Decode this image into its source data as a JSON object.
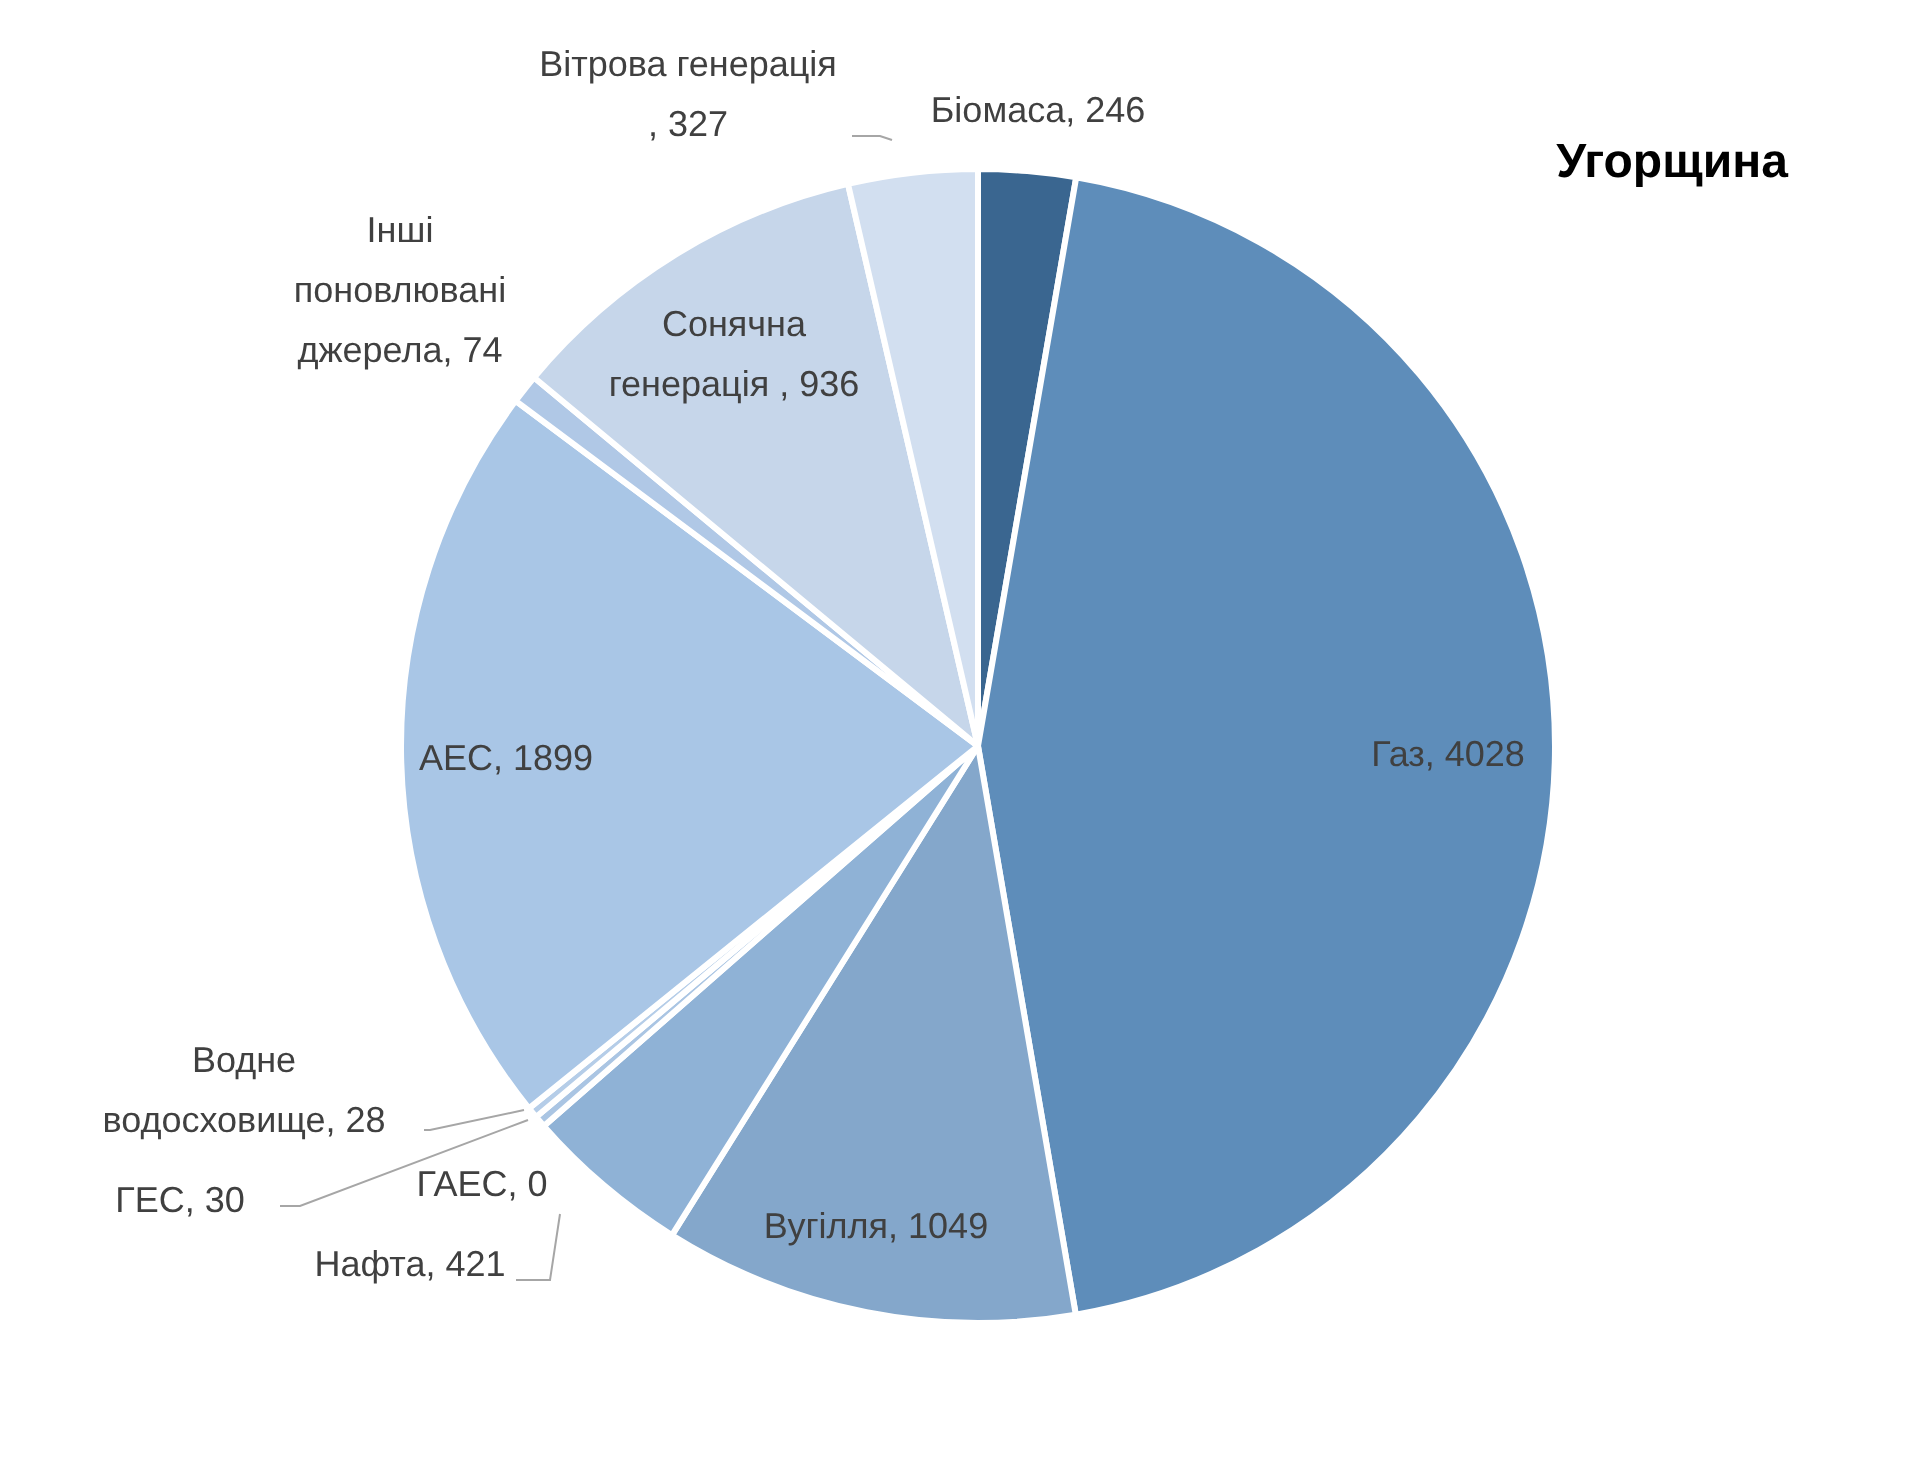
{
  "chart_data": {
    "type": "pie",
    "title": "Угорщина",
    "categories": [
      "Біомаса",
      "Газ",
      "Вугілля",
      "Нафта",
      "ГАЕС",
      "ГЕС",
      "Водне водосховище",
      "АЕС",
      "Інші поновлювані джерела",
      "Сонячна генерація ",
      "Вітрова генерація"
    ],
    "values": [
      246,
      4028,
      1049,
      421,
      0,
      30,
      28,
      1899,
      74,
      936,
      327
    ],
    "colors": [
      "#3a6690",
      "#5e8dba",
      "#84a7cb",
      "#8fb2d6",
      "#6b98c8",
      "#aac5e3",
      "#b5cde8",
      "#a9c6e6",
      "#b0c8e6",
      "#c6d6ea",
      "#d2dff0"
    ],
    "value_labels": [
      ", 246",
      ", 4028",
      ", 1049",
      ", 421",
      ", 0",
      ", 30",
      ", 28",
      ", 1899",
      ", 74",
      ", 936",
      ", 327"
    ],
    "legend": false
  }
}
